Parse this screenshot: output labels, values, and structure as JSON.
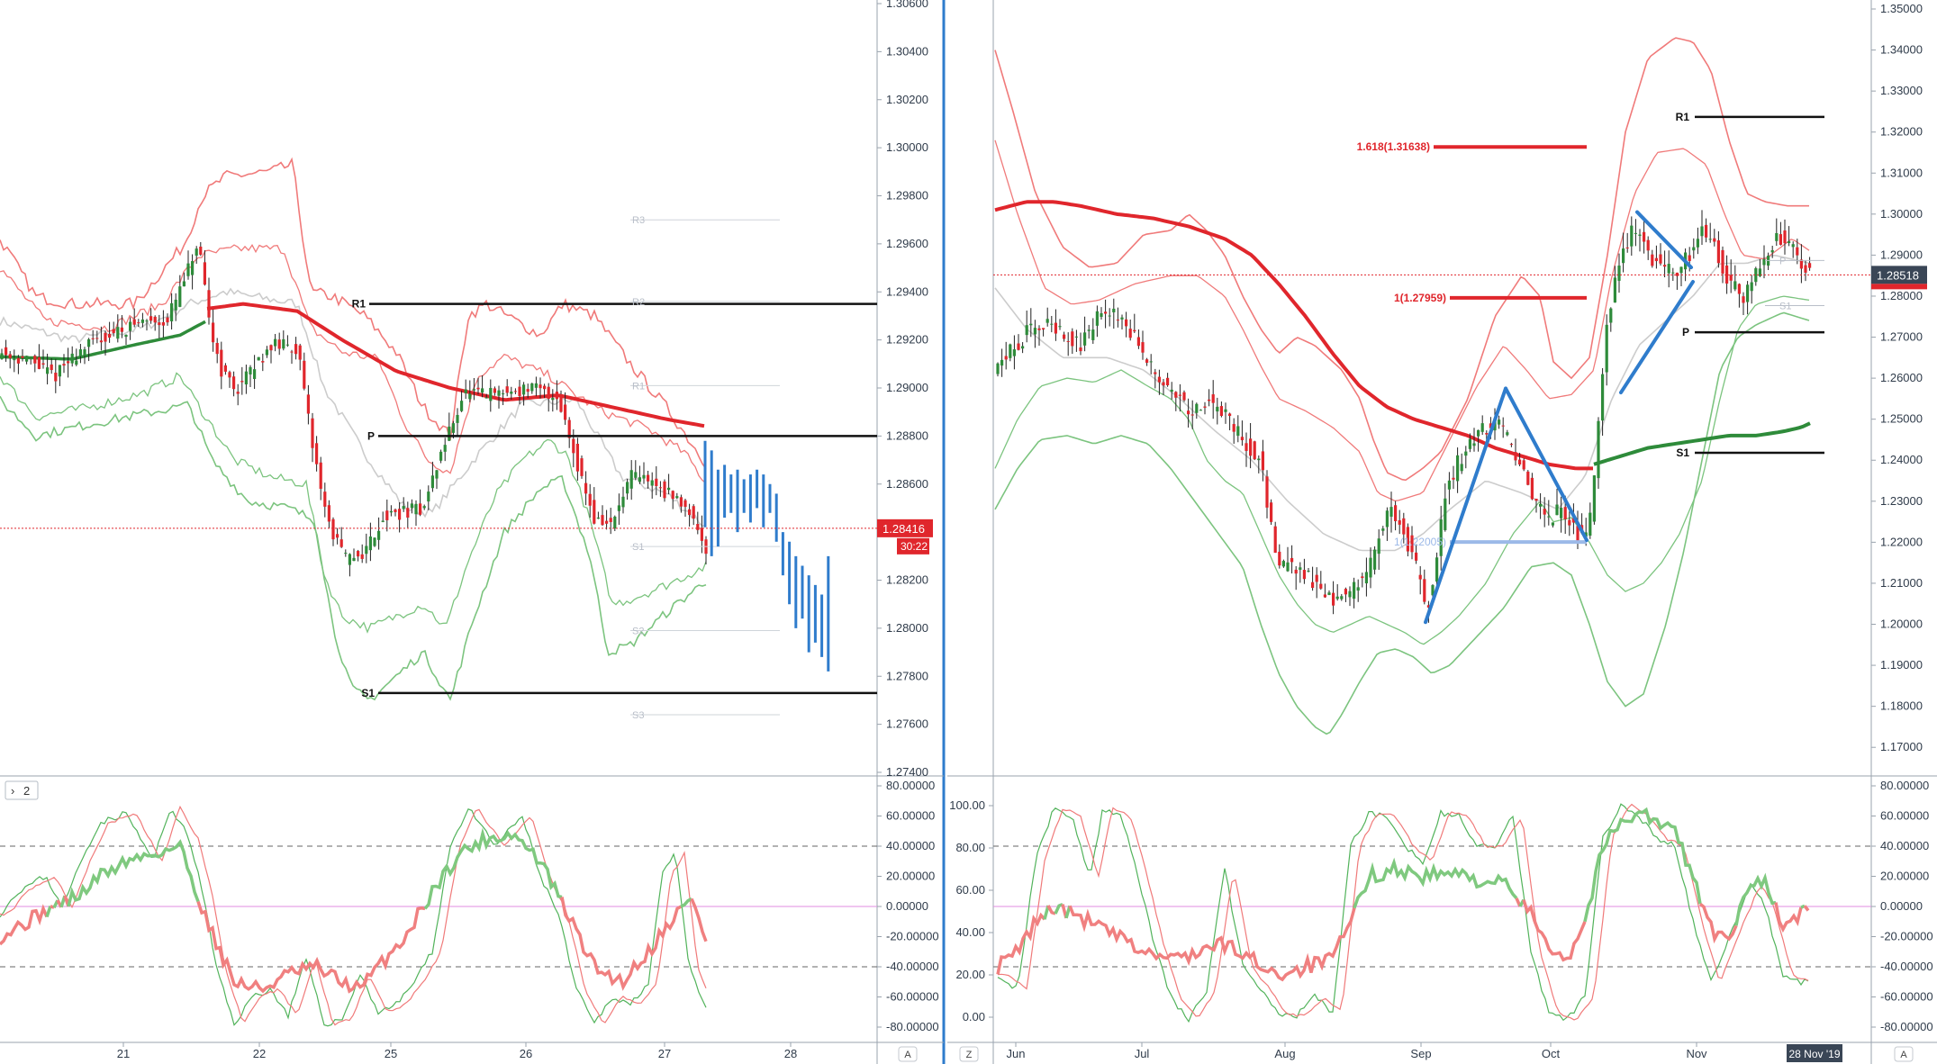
{
  "chart_data": [
    {
      "type": "candlestick",
      "title": "",
      "xlabel": "",
      "ylabel": "",
      "x_ticks": [
        "21",
        "22",
        "25",
        "26",
        "27",
        "28"
      ],
      "ylim": [
        1.274,
        1.306
      ],
      "y_ticks": [
        "1.30600",
        "1.30400",
        "1.30200",
        "1.30000",
        "1.29800",
        "1.29600",
        "1.29400",
        "1.29200",
        "1.29000",
        "1.28800",
        "1.28600",
        "1.28400",
        "1.28200",
        "1.28000",
        "1.27800",
        "1.27600",
        "1.27400"
      ],
      "current_price": "1.28416",
      "countdown": "30:22",
      "pivot_levels": [
        {
          "label": "R1",
          "value": 1.2935
        },
        {
          "label": "P",
          "value": 1.288
        },
        {
          "label": "S1",
          "value": 1.2773
        }
      ],
      "faint_levels": [
        {
          "label": "R3",
          "value": 1.297
        },
        {
          "label": "R2",
          "value": 1.2936
        },
        {
          "label": "R1",
          "value": 1.2901
        },
        {
          "label": "S1",
          "value": 1.2834
        },
        {
          "label": "S2",
          "value": 1.2799
        },
        {
          "label": "S3",
          "value": 1.2764
        }
      ],
      "projection_bars": [
        [
          1.2878,
          1.2842
        ],
        [
          1.2874,
          1.283
        ],
        [
          1.2866,
          1.2834
        ],
        [
          1.2868,
          1.2846
        ],
        [
          1.2864,
          1.2848
        ],
        [
          1.2866,
          1.284
        ],
        [
          1.2862,
          1.2848
        ],
        [
          1.2864,
          1.2844
        ],
        [
          1.2866,
          1.285
        ],
        [
          1.2864,
          1.2842
        ],
        [
          1.286,
          1.2848
        ],
        [
          1.2856,
          1.2836
        ],
        [
          1.284,
          1.2822
        ],
        [
          1.2836,
          1.281
        ],
        [
          1.283,
          1.28
        ],
        [
          1.2826,
          1.2804
        ],
        [
          1.2822,
          1.279
        ],
        [
          1.2818,
          1.2794
        ],
        [
          1.2814,
          1.2788
        ],
        [
          1.283,
          1.2782
        ]
      ],
      "indicator_label": "2",
      "indicator_ylim": [
        -80,
        80
      ],
      "indicator_y_ticks": [
        "80.00000",
        "60.00000",
        "40.00000",
        "20.00000",
        "0.00000",
        "-20.00000",
        "-40.00000",
        "-60.00000",
        "-80.00000"
      ],
      "axis_badge": "A"
    },
    {
      "type": "candlestick",
      "title": "",
      "xlabel": "",
      "ylabel": "",
      "x_ticks": [
        "Jun",
        "Jul",
        "Aug",
        "Sep",
        "Oct",
        "Nov"
      ],
      "ylim": [
        1.165,
        1.35
      ],
      "y_ticks": [
        "1.35000",
        "1.34000",
        "1.33000",
        "1.32000",
        "1.31000",
        "1.30000",
        "1.29000",
        "1.28000",
        "1.27000",
        "1.26000",
        "1.25000",
        "1.24000",
        "1.23000",
        "1.22000",
        "1.21000",
        "1.20000",
        "1.19000",
        "1.18000",
        "1.17000"
      ],
      "current_price": "1.28518",
      "pivot_levels": [
        {
          "label": "R1",
          "value": 1.3237
        },
        {
          "label": "P",
          "value": 1.2712
        },
        {
          "label": "S1",
          "value": 1.2418
        }
      ],
      "faint_levels": [
        {
          "label": "P",
          "value": 1.2887
        },
        {
          "label": "S1",
          "value": 1.2777
        }
      ],
      "fibonacci": [
        {
          "label": "1.618(1.31638)",
          "value": 1.31638
        },
        {
          "label": "1(1.27959)",
          "value": 1.27959
        },
        {
          "label": "1(1.22005)",
          "value": 1.22005
        }
      ],
      "indicator_ylim": [
        -8,
        105
      ],
      "indicator_left_ticks": [
        "100.00",
        "80.00",
        "60.00",
        "40.00",
        "20.00",
        "0.00"
      ],
      "indicator_y_ticks": [
        "80.00000",
        "60.00000",
        "40.00000",
        "20.00000",
        "0.00000",
        "-20.00000",
        "-40.00000",
        "-60.00000",
        "-80.00000"
      ],
      "date_badge": "28 Nov '19",
      "axis_badges": [
        "Z",
        "A"
      ]
    }
  ],
  "colors": {
    "up": "#2e8b3a",
    "down": "#e0262c",
    "band_red": "#f07a7a",
    "band_green": "#7cc47f",
    "ma_grey": "#cccccc",
    "pattern_blue": "#2f7ccc",
    "price_line": "#e0262c"
  }
}
